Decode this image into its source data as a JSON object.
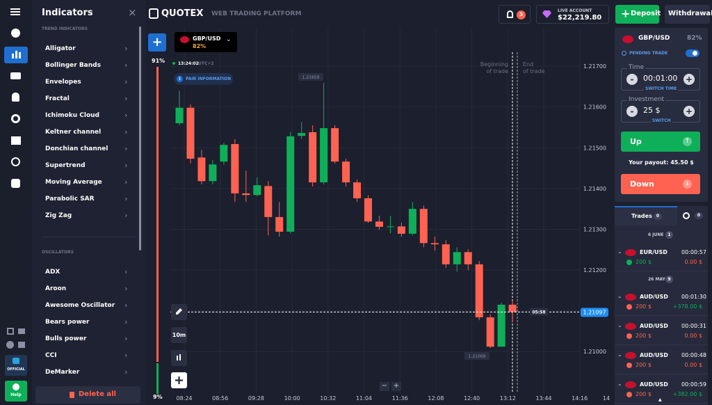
{
  "sidebar": {
    "official": "OFFICIAL",
    "help": "Help"
  },
  "indicators": {
    "title": "Indicators",
    "groups": [
      {
        "heading": "TREND INDICATORS",
        "items": [
          "Alligator",
          "Bollinger Bands",
          "Envelopes",
          "Fractal",
          "Ichimoku Cloud",
          "Keltner channel",
          "Donchian channel",
          "Supertrend",
          "Moving Average",
          "Parabolic SAR",
          "Zig Zag"
        ]
      },
      {
        "heading": "OSCILLATORS",
        "items": [
          "ADX",
          "Aroon",
          "Awesome Oscillator",
          "Bears power",
          "Bulls power",
          "CCI",
          "DeMarker"
        ]
      }
    ],
    "delete_all": "Delete all"
  },
  "header": {
    "logo": "QUOTEX",
    "tagline": "WEB TRADING PLATFORM",
    "notifications": "3",
    "account_label": "LIVE ACCOUNT",
    "balance": "$22,219.80",
    "deposit": "Deposit",
    "withdrawal": "Withdrawal"
  },
  "chart_panel": {
    "asset": "GBP/USD",
    "asset_payout": "82%",
    "sentiment_up": "91%",
    "sentiment_down": "9%",
    "server_time": "13:24:02",
    "timezone": "UTC+2",
    "pair_information": "PAIR INFORMATION",
    "beginning_of_trade": [
      "Beginning",
      "of trade"
    ],
    "end_of_trade": [
      "End",
      "of trade"
    ],
    "timeframe": "10m",
    "countdown": "05:58"
  },
  "chart_data": {
    "type": "candlestick",
    "open": [
      1.2156,
      1.21598,
      1.21476,
      1.21418,
      1.21466,
      1.21509,
      1.21388,
      1.21384,
      1.21406,
      1.2133,
      1.21294,
      1.21529,
      1.21538,
      1.21415,
      1.21548,
      1.21466,
      1.21415,
      1.21376,
      1.21319,
      1.21306,
      1.21307,
      1.21289,
      1.2135,
      1.21266,
      1.21263,
      1.21214,
      1.21244,
      1.21214,
      1.21084,
      1.21012,
      1.21115
    ],
    "high": [
      1.2164,
      1.21606,
      1.21495,
      1.2147,
      1.21512,
      1.21521,
      1.21444,
      1.21427,
      1.21418,
      1.21367,
      1.21538,
      1.21563,
      1.21555,
      1.21659,
      1.21555,
      1.21473,
      1.21422,
      1.21384,
      1.21333,
      1.21333,
      1.21316,
      1.21367,
      1.21358,
      1.21282,
      1.21273,
      1.21256,
      1.21251,
      1.21222,
      1.21091,
      1.2112,
      1.21125
    ],
    "low": [
      1.21555,
      1.21461,
      1.2141,
      1.2141,
      1.21458,
      1.21367,
      1.21367,
      1.21381,
      1.21285,
      1.21282,
      1.2129,
      1.21521,
      1.21405,
      1.2141,
      1.21461,
      1.21405,
      1.21367,
      1.21316,
      1.21299,
      1.2129,
      1.21282,
      1.21285,
      1.21256,
      1.21248,
      1.21205,
      1.21196,
      1.212,
      1.21077,
      1.21009,
      1.21012,
      1.21073
    ],
    "close": [
      1.21598,
      1.21473,
      1.21418,
      1.21459,
      1.21507,
      1.21388,
      1.21384,
      1.21408,
      1.2133,
      1.21294,
      1.21528,
      1.21536,
      1.21415,
      1.21548,
      1.21466,
      1.21415,
      1.21376,
      1.21319,
      1.21306,
      1.21307,
      1.21289,
      1.2135,
      1.21266,
      1.21263,
      1.21214,
      1.21244,
      1.21214,
      1.21084,
      1.21012,
      1.21115,
      1.21097
    ],
    "up_color": "#0faf59",
    "down_color": "#ff6251",
    "ylim": [
      1.20898,
      1.21794
    ],
    "yticks": [
      {
        "value": 1.217,
        "label": "1.21700"
      },
      {
        "value": 1.216,
        "label": "1.21600"
      },
      {
        "value": 1.215,
        "label": "1.21500"
      },
      {
        "value": 1.214,
        "label": "1.21400"
      },
      {
        "value": 1.213,
        "label": "1.21300"
      },
      {
        "value": 1.212,
        "label": "1.21200"
      },
      {
        "value": 1.211,
        "label": "1.21100"
      },
      {
        "value": 1.21,
        "label": "1.21000"
      }
    ],
    "xticks": [
      "08:24",
      "08:56",
      "09:28",
      "10:00",
      "10:32",
      "11:04",
      "11:36",
      "12:08",
      "12:40",
      "13:12",
      "13:44",
      "14:16",
      "14"
    ],
    "current_price": {
      "value": 1.21097,
      "label": "1.21097"
    },
    "annotations": [
      {
        "value": 1.21659,
        "label": "1.21659"
      },
      {
        "value": 1.21009,
        "label": "1.21009"
      }
    ],
    "grid": true
  },
  "trade_panel": {
    "pair": "GBP/USD",
    "payout": "82%",
    "pending_trade": "PENDING TRADE",
    "time_label": "Time",
    "time_value": "00:01:00",
    "switch_time": "SWITCH TIME",
    "investment_label": "Investment",
    "investment_value": "25 $",
    "switch": "SWITCH",
    "up": "Up",
    "payout_label": "Your payout:",
    "payout_value": "45.50 $",
    "down": "Down"
  },
  "trades": {
    "tab_label": "Trades",
    "tab_count": "0",
    "history_count": "0",
    "groups": [
      {
        "date": "6 JUNE",
        "count": "1",
        "rows": [
          {
            "pair": "EUR/USD",
            "duration": "00:00:57",
            "amount": "200 $",
            "result": "0.00 $",
            "direction": "up"
          }
        ]
      },
      {
        "date": "26 MAY",
        "count": "9",
        "rows": [
          {
            "pair": "AUD/USD",
            "duration": "00:01:30",
            "amount": "200 $",
            "result": "+378.00 $",
            "direction": "down"
          },
          {
            "pair": "AUD/USD",
            "duration": "00:00:31",
            "amount": "200 $",
            "result": "0.00 $",
            "direction": "down"
          },
          {
            "pair": "AUD/USD",
            "duration": "00:00:48",
            "amount": "200 $",
            "result": "0.00 $",
            "direction": "down"
          },
          {
            "pair": "AUD/USD",
            "duration": "00:00:59",
            "amount": "200 $",
            "result": "+382.00 $",
            "direction": "down"
          }
        ]
      }
    ]
  }
}
